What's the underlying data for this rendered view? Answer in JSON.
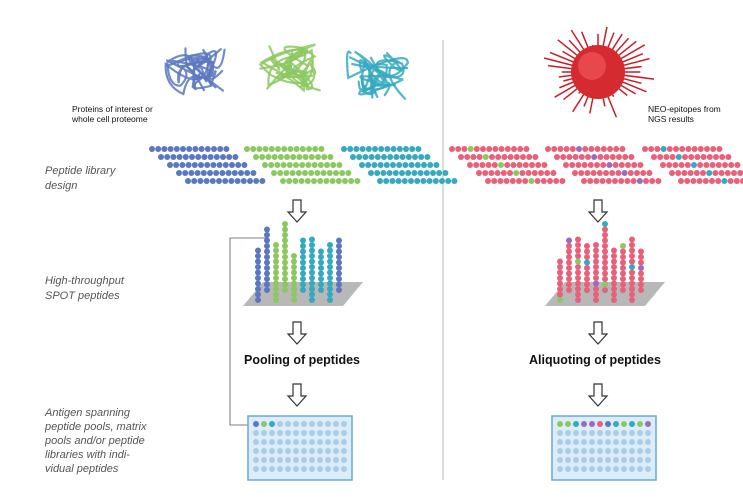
{
  "proteins_label": [
    "Proteins of interest or",
    "whole cell proteome"
  ],
  "neo_label": [
    "NEO-epitopes from",
    "NGS results"
  ],
  "side_labels": {
    "library_design": [
      "Peptide library",
      "design"
    ],
    "spot_peptides": [
      "High-throughput",
      "SPOT peptides"
    ],
    "antigen_pools": [
      "Antigen spanning",
      "peptide pools, matrix",
      "pools and/or peptide",
      "libraries with indi-",
      "vidual peptides"
    ]
  },
  "pooling": "Pooling of peptides",
  "aliquoting": "Aliquoting of peptides"
}
